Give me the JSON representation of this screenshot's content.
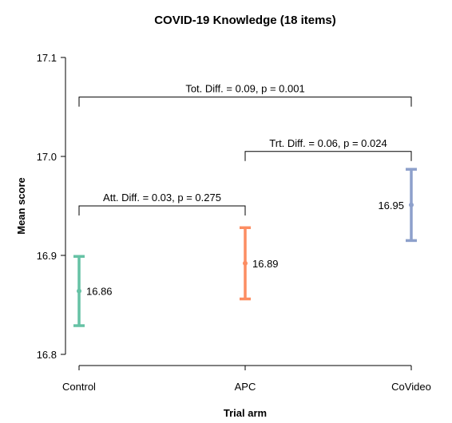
{
  "chart_data": {
    "type": "errorbar",
    "title": "COVID-19 Knowledge (18 items)",
    "xlabel": "Trial arm",
    "ylabel": "Mean score",
    "ylim": [
      16.8,
      17.1
    ],
    "yticks": [
      "16.8",
      "16.9",
      "17.0",
      "17.1"
    ],
    "categories": [
      "Control",
      "APC",
      "CoVideo"
    ],
    "points": [
      {
        "category": "Control",
        "mean": 16.864,
        "lower": 16.829,
        "upper": 16.899,
        "label": "16.86",
        "color": "#66c2a5",
        "label_side": "right"
      },
      {
        "category": "APC",
        "mean": 16.892,
        "lower": 16.856,
        "upper": 16.928,
        "label": "16.89",
        "color": "#fc8d62",
        "label_side": "right"
      },
      {
        "category": "CoVideo",
        "mean": 16.951,
        "lower": 16.915,
        "upper": 16.987,
        "label": "16.95",
        "color": "#8da0cb",
        "label_side": "left"
      }
    ],
    "comparisons": [
      {
        "from": "Control",
        "to": "APC",
        "label": "Att. Diff. = 0.03, p = 0.275",
        "y": 16.95
      },
      {
        "from": "APC",
        "to": "CoVideo",
        "label": "Trt. Diff. = 0.06, p = 0.024",
        "y": 17.005
      },
      {
        "from": "Control",
        "to": "CoVideo",
        "label": "Tot. Diff. = 0.09, p = 0.001",
        "y": 17.06
      }
    ],
    "grid": false,
    "legend": "none"
  }
}
